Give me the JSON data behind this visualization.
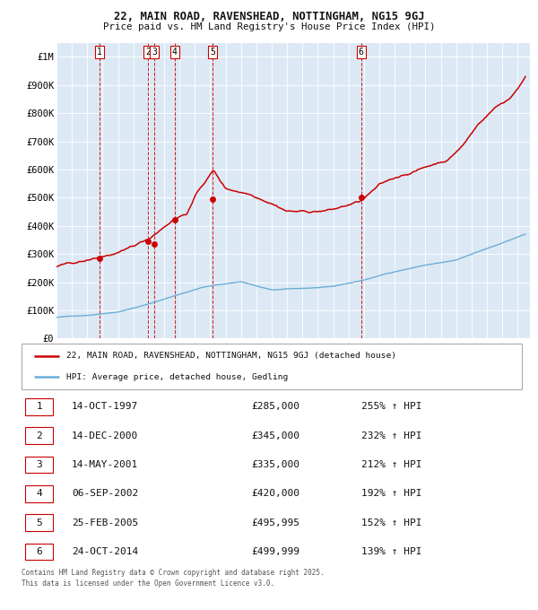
{
  "title": "22, MAIN ROAD, RAVENSHEAD, NOTTINGHAM, NG15 9GJ",
  "subtitle": "Price paid vs. HM Land Registry's House Price Index (HPI)",
  "plot_bg_color": "#dce9f5",
  "hpi_color": "#6baed6",
  "price_color": "#cc0000",
  "transactions": [
    {
      "num": 1,
      "date_label": "14-OCT-1997",
      "x": 1997.79,
      "price": 285000,
      "hpi_pct": "255% ↑ HPI"
    },
    {
      "num": 2,
      "date_label": "14-DEC-2000",
      "x": 2000.96,
      "price": 345000,
      "hpi_pct": "232% ↑ HPI"
    },
    {
      "num": 3,
      "date_label": "14-MAY-2001",
      "x": 2001.37,
      "price": 335000,
      "hpi_pct": "212% ↑ HPI"
    },
    {
      "num": 4,
      "date_label": "06-SEP-2002",
      "x": 2002.68,
      "price": 420000,
      "hpi_pct": "192% ↑ HPI"
    },
    {
      "num": 5,
      "date_label": "25-FEB-2005",
      "x": 2005.15,
      "price": 495995,
      "hpi_pct": "152% ↑ HPI"
    },
    {
      "num": 6,
      "date_label": "24-OCT-2014",
      "x": 2014.82,
      "price": 499999,
      "hpi_pct": "139% ↑ HPI"
    }
  ],
  "legend_line1": "22, MAIN ROAD, RAVENSHEAD, NOTTINGHAM, NG15 9GJ (detached house)",
  "legend_line2": "HPI: Average price, detached house, Gedling",
  "footer1": "Contains HM Land Registry data © Crown copyright and database right 2025.",
  "footer2": "This data is licensed under the Open Government Licence v3.0.",
  "ylim": [
    0,
    1050000
  ],
  "xlim": [
    1995.0,
    2025.8
  ],
  "yticks": [
    0,
    100000,
    200000,
    300000,
    400000,
    500000,
    600000,
    700000,
    800000,
    900000,
    1000000
  ],
  "ytick_labels": [
    "£0",
    "£100K",
    "£200K",
    "£300K",
    "£400K",
    "£500K",
    "£600K",
    "£700K",
    "£800K",
    "£900K",
    "£1M"
  ],
  "hpi_xp": [
    1995.0,
    1997.0,
    1999.0,
    2001.0,
    2003.0,
    2004.5,
    2007.0,
    2009.0,
    2011.0,
    2013.0,
    2015.0,
    2017.0,
    2019.0,
    2021.0,
    2023.0,
    2025.5
  ],
  "hpi_fp": [
    75000,
    83000,
    97000,
    125000,
    160000,
    185000,
    205000,
    175000,
    180000,
    185000,
    208000,
    238000,
    262000,
    278000,
    318000,
    370000
  ],
  "price_xp": [
    1995.0,
    1997.0,
    1998.0,
    1999.5,
    2001.0,
    2002.5,
    2003.5,
    2004.2,
    2005.2,
    2006.0,
    2007.5,
    2009.0,
    2010.0,
    2011.5,
    2013.0,
    2014.8,
    2016.0,
    2017.5,
    2019.0,
    2020.5,
    2021.5,
    2022.5,
    2023.5,
    2024.5,
    2025.5
  ],
  "price_fp": [
    255000,
    272000,
    287000,
    305000,
    345000,
    415000,
    445000,
    520000,
    595000,
    530000,
    515000,
    490000,
    465000,
    462000,
    470000,
    498000,
    550000,
    585000,
    615000,
    645000,
    700000,
    775000,
    830000,
    865000,
    940000
  ]
}
